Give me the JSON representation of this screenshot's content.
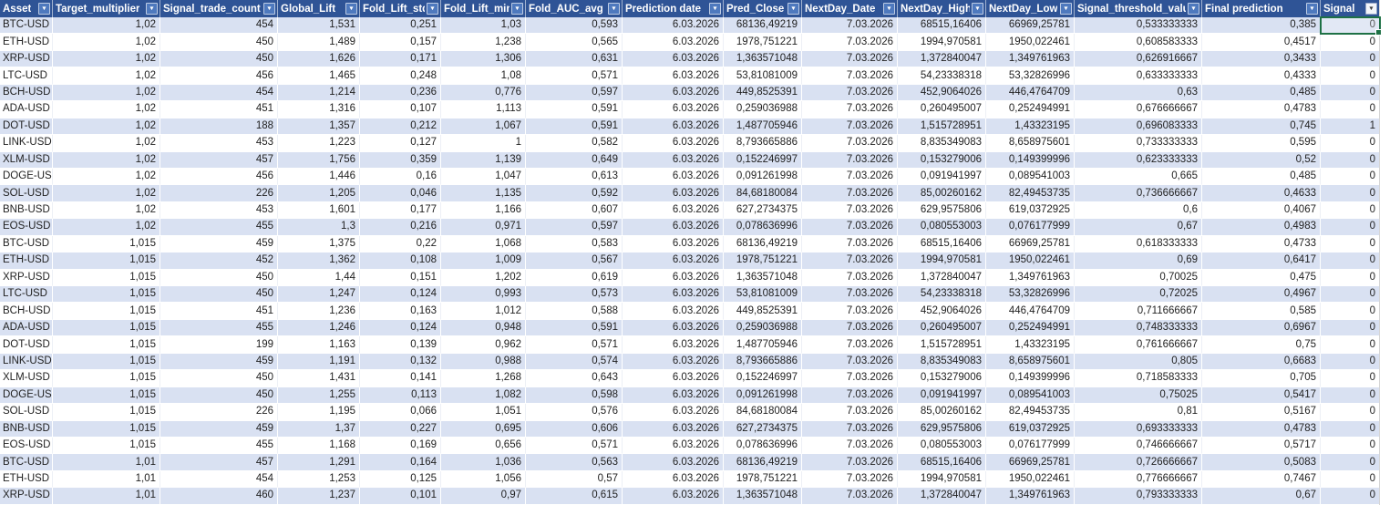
{
  "app": {
    "type": "spreadsheet-table",
    "decimal_separator": ","
  },
  "colors": {
    "header_bg": "#2F5496",
    "header_text": "#FFFFFF",
    "band_row_bg": "#D9E1F2",
    "plain_row_bg": "#FFFFFF",
    "cell_text": "#1F1F1F",
    "selection_border": "#1E7145",
    "filter_button_bg": "#4E79BE",
    "filter_button_light_bg": "#F2F5FA"
  },
  "icons": {
    "filter_dropdown": "▼"
  },
  "table": {
    "columns": [
      {
        "label": "Asset",
        "key": "asset",
        "width": 58,
        "align": "left"
      },
      {
        "label": "Target_multiplier",
        "key": "target_multiplier",
        "width": 118,
        "align": "right"
      },
      {
        "label": "Signal_trade_count",
        "key": "signal_trade_count",
        "width": 129,
        "align": "right"
      },
      {
        "label": "Global_Lift",
        "key": "global_lift",
        "width": 90,
        "align": "right"
      },
      {
        "label": "Fold_Lift_std",
        "key": "fold_lift_std",
        "width": 89,
        "align": "right"
      },
      {
        "label": "Fold_Lift_min",
        "key": "fold_lift_min",
        "width": 93,
        "align": "right"
      },
      {
        "label": "Fold_AUC_avg",
        "key": "fold_auc_avg",
        "width": 106,
        "align": "right"
      },
      {
        "label": "Prediction date",
        "key": "prediction_date",
        "width": 111,
        "align": "right"
      },
      {
        "label": "Pred_Close",
        "key": "pred_close",
        "width": 86,
        "align": "right"
      },
      {
        "label": "NextDay_Date",
        "key": "nextday_date",
        "width": 105,
        "align": "right"
      },
      {
        "label": "NextDay_High",
        "key": "nextday_high",
        "width": 97,
        "align": "right"
      },
      {
        "label": "NextDay_Low",
        "key": "nextday_low",
        "width": 97,
        "align": "right"
      },
      {
        "label": "Signal_threshold_value",
        "key": "signal_threshold_value",
        "width": 140,
        "align": "right"
      },
      {
        "label": "Final prediction",
        "key": "final_prediction",
        "width": 130,
        "align": "right"
      },
      {
        "label": "Signal",
        "key": "signal",
        "width": 65,
        "align": "right"
      }
    ],
    "rows": [
      [
        "BTC-USD",
        "1,02",
        "454",
        "1,531",
        "0,251",
        "1,03",
        "0,593",
        "6.03.2026",
        "68136,49219",
        "7.03.2026",
        "68515,16406",
        "66969,25781",
        "0,533333333",
        "0,385",
        "0"
      ],
      [
        "ETH-USD",
        "1,02",
        "450",
        "1,489",
        "0,157",
        "1,238",
        "0,565",
        "6.03.2026",
        "1978,751221",
        "7.03.2026",
        "1994,970581",
        "1950,022461",
        "0,608583333",
        "0,4517",
        "0"
      ],
      [
        "XRP-USD",
        "1,02",
        "450",
        "1,626",
        "0,171",
        "1,306",
        "0,631",
        "6.03.2026",
        "1,363571048",
        "7.03.2026",
        "1,372840047",
        "1,349761963",
        "0,626916667",
        "0,3433",
        "0"
      ],
      [
        "LTC-USD",
        "1,02",
        "456",
        "1,465",
        "0,248",
        "1,08",
        "0,571",
        "6.03.2026",
        "53,81081009",
        "7.03.2026",
        "54,23338318",
        "53,32826996",
        "0,633333333",
        "0,4333",
        "0"
      ],
      [
        "BCH-USD",
        "1,02",
        "454",
        "1,214",
        "0,236",
        "0,776",
        "0,597",
        "6.03.2026",
        "449,8525391",
        "7.03.2026",
        "452,9064026",
        "446,4764709",
        "0,63",
        "0,485",
        "0"
      ],
      [
        "ADA-USD",
        "1,02",
        "451",
        "1,316",
        "0,107",
        "1,113",
        "0,591",
        "6.03.2026",
        "0,259036988",
        "7.03.2026",
        "0,260495007",
        "0,252494991",
        "0,676666667",
        "0,4783",
        "0"
      ],
      [
        "DOT-USD",
        "1,02",
        "188",
        "1,357",
        "0,212",
        "1,067",
        "0,591",
        "6.03.2026",
        "1,487705946",
        "7.03.2026",
        "1,515728951",
        "1,43323195",
        "0,696083333",
        "0,745",
        "1"
      ],
      [
        "LINK-USD",
        "1,02",
        "453",
        "1,223",
        "0,127",
        "1",
        "0,582",
        "6.03.2026",
        "8,793665886",
        "7.03.2026",
        "8,835349083",
        "8,658975601",
        "0,733333333",
        "0,595",
        "0"
      ],
      [
        "XLM-USD",
        "1,02",
        "457",
        "1,756",
        "0,359",
        "1,139",
        "0,649",
        "6.03.2026",
        "0,152246997",
        "7.03.2026",
        "0,153279006",
        "0,149399996",
        "0,623333333",
        "0,52",
        "0"
      ],
      [
        "DOGE-USD",
        "1,02",
        "456",
        "1,446",
        "0,16",
        "1,047",
        "0,613",
        "6.03.2026",
        "0,091261998",
        "7.03.2026",
        "0,091941997",
        "0,089541003",
        "0,665",
        "0,485",
        "0"
      ],
      [
        "SOL-USD",
        "1,02",
        "226",
        "1,205",
        "0,046",
        "1,135",
        "0,592",
        "6.03.2026",
        "84,68180084",
        "7.03.2026",
        "85,00260162",
        "82,49453735",
        "0,736666667",
        "0,4633",
        "0"
      ],
      [
        "BNB-USD",
        "1,02",
        "453",
        "1,601",
        "0,177",
        "1,166",
        "0,607",
        "6.03.2026",
        "627,2734375",
        "7.03.2026",
        "629,9575806",
        "619,0372925",
        "0,6",
        "0,4067",
        "0"
      ],
      [
        "EOS-USD",
        "1,02",
        "455",
        "1,3",
        "0,216",
        "0,971",
        "0,597",
        "6.03.2026",
        "0,078636996",
        "7.03.2026",
        "0,080553003",
        "0,076177999",
        "0,67",
        "0,4983",
        "0"
      ],
      [
        "BTC-USD",
        "1,015",
        "459",
        "1,375",
        "0,22",
        "1,068",
        "0,583",
        "6.03.2026",
        "68136,49219",
        "7.03.2026",
        "68515,16406",
        "66969,25781",
        "0,618333333",
        "0,4733",
        "0"
      ],
      [
        "ETH-USD",
        "1,015",
        "452",
        "1,362",
        "0,108",
        "1,009",
        "0,567",
        "6.03.2026",
        "1978,751221",
        "7.03.2026",
        "1994,970581",
        "1950,022461",
        "0,69",
        "0,6417",
        "0"
      ],
      [
        "XRP-USD",
        "1,015",
        "450",
        "1,44",
        "0,151",
        "1,202",
        "0,619",
        "6.03.2026",
        "1,363571048",
        "7.03.2026",
        "1,372840047",
        "1,349761963",
        "0,70025",
        "0,475",
        "0"
      ],
      [
        "LTC-USD",
        "1,015",
        "450",
        "1,247",
        "0,124",
        "0,993",
        "0,573",
        "6.03.2026",
        "53,81081009",
        "7.03.2026",
        "54,23338318",
        "53,32826996",
        "0,72025",
        "0,4967",
        "0"
      ],
      [
        "BCH-USD",
        "1,015",
        "451",
        "1,236",
        "0,163",
        "1,012",
        "0,588",
        "6.03.2026",
        "449,8525391",
        "7.03.2026",
        "452,9064026",
        "446,4764709",
        "0,711666667",
        "0,585",
        "0"
      ],
      [
        "ADA-USD",
        "1,015",
        "455",
        "1,246",
        "0,124",
        "0,948",
        "0,591",
        "6.03.2026",
        "0,259036988",
        "7.03.2026",
        "0,260495007",
        "0,252494991",
        "0,748333333",
        "0,6967",
        "0"
      ],
      [
        "DOT-USD",
        "1,015",
        "199",
        "1,163",
        "0,139",
        "0,962",
        "0,571",
        "6.03.2026",
        "1,487705946",
        "7.03.2026",
        "1,515728951",
        "1,43323195",
        "0,761666667",
        "0,75",
        "0"
      ],
      [
        "LINK-USD",
        "1,015",
        "459",
        "1,191",
        "0,132",
        "0,988",
        "0,574",
        "6.03.2026",
        "8,793665886",
        "7.03.2026",
        "8,835349083",
        "8,658975601",
        "0,805",
        "0,6683",
        "0"
      ],
      [
        "XLM-USD",
        "1,015",
        "450",
        "1,431",
        "0,141",
        "1,268",
        "0,643",
        "6.03.2026",
        "0,152246997",
        "7.03.2026",
        "0,153279006",
        "0,149399996",
        "0,718583333",
        "0,705",
        "0"
      ],
      [
        "DOGE-USD",
        "1,015",
        "450",
        "1,255",
        "0,113",
        "1,082",
        "0,598",
        "6.03.2026",
        "0,091261998",
        "7.03.2026",
        "0,091941997",
        "0,089541003",
        "0,75025",
        "0,5417",
        "0"
      ],
      [
        "SOL-USD",
        "1,015",
        "226",
        "1,195",
        "0,066",
        "1,051",
        "0,576",
        "6.03.2026",
        "84,68180084",
        "7.03.2026",
        "85,00260162",
        "82,49453735",
        "0,81",
        "0,5167",
        "0"
      ],
      [
        "BNB-USD",
        "1,015",
        "459",
        "1,37",
        "0,227",
        "0,695",
        "0,606",
        "6.03.2026",
        "627,2734375",
        "7.03.2026",
        "629,9575806",
        "619,0372925",
        "0,693333333",
        "0,4783",
        "0"
      ],
      [
        "EOS-USD",
        "1,015",
        "455",
        "1,168",
        "0,169",
        "0,656",
        "0,571",
        "6.03.2026",
        "0,078636996",
        "7.03.2026",
        "0,080553003",
        "0,076177999",
        "0,746666667",
        "0,5717",
        "0"
      ],
      [
        "BTC-USD",
        "1,01",
        "457",
        "1,291",
        "0,164",
        "1,036",
        "0,563",
        "6.03.2026",
        "68136,49219",
        "7.03.2026",
        "68515,16406",
        "66969,25781",
        "0,726666667",
        "0,5083",
        "0"
      ],
      [
        "ETH-USD",
        "1,01",
        "454",
        "1,253",
        "0,125",
        "1,056",
        "0,57",
        "6.03.2026",
        "1978,751221",
        "7.03.2026",
        "1994,970581",
        "1950,022461",
        "0,776666667",
        "0,7467",
        "0"
      ],
      [
        "XRP-USD",
        "1,01",
        "460",
        "1,237",
        "0,101",
        "0,97",
        "0,615",
        "6.03.2026",
        "1,363571048",
        "7.03.2026",
        "1,372840047",
        "1,349761963",
        "0,793333333",
        "0,67",
        "0"
      ]
    ]
  },
  "selection": {
    "row_index": 0,
    "column_key": "signal",
    "value": "0"
  }
}
